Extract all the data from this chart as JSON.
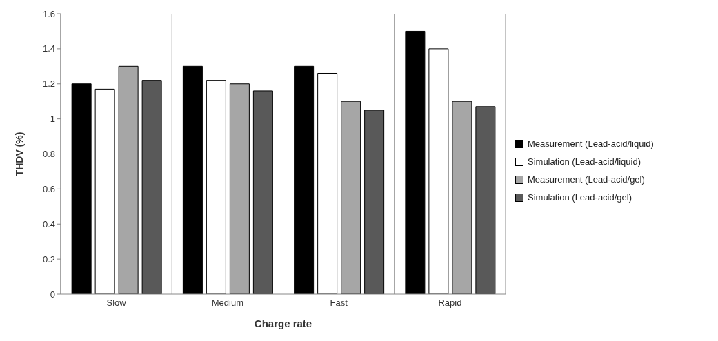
{
  "chart_data": {
    "type": "bar",
    "xlabel": "Charge rate",
    "ylabel": "THDV (%)",
    "categories": [
      "Slow",
      "Medium",
      "Fast",
      "Rapid"
    ],
    "series": [
      {
        "name": "Measurement (Lead-acid/liquid)",
        "color": "#000000",
        "values": [
          1.2,
          1.3,
          1.3,
          1.5
        ]
      },
      {
        "name": "Simulation (Lead-acid/liquid)",
        "color": "#ffffff",
        "values": [
          1.17,
          1.22,
          1.26,
          1.4
        ]
      },
      {
        "name": "Measurement (Lead-acid/gel)",
        "color": "#a6a6a6",
        "values": [
          1.3,
          1.2,
          1.1,
          1.1
        ]
      },
      {
        "name": "Simulation (Lead-acid/gel)",
        "color": "#595959",
        "values": [
          1.22,
          1.16,
          1.05,
          1.07
        ]
      }
    ],
    "ylim": [
      0,
      1.6
    ],
    "yticks": [
      0,
      0.2,
      0.4,
      0.6,
      0.8,
      1,
      1.2,
      1.4,
      1.6
    ],
    "grid": "x",
    "legend": "right"
  }
}
